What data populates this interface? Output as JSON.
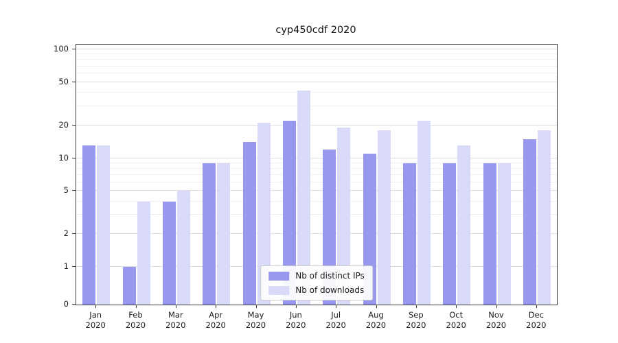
{
  "chart_data": {
    "type": "bar",
    "title": "cyp450cdf 2020",
    "categories": [
      "Jan 2020",
      "Feb 2020",
      "Mar 2020",
      "Apr 2020",
      "May 2020",
      "Jun 2020",
      "Jul 2020",
      "Aug 2020",
      "Sep 2020",
      "Oct 2020",
      "Nov 2020",
      "Dec 2020"
    ],
    "series": [
      {
        "name": "Nb of distinct IPs",
        "color": "#9898ee",
        "values": [
          13,
          1,
          4,
          9,
          14,
          22,
          12,
          11,
          9,
          9,
          9,
          15
        ]
      },
      {
        "name": "Nb of downloads",
        "color": "#d9d9f8",
        "values": [
          13,
          4,
          5,
          9,
          21,
          42,
          19,
          18,
          22,
          13,
          9,
          18
        ]
      }
    ],
    "yscale": "symlog",
    "y_ticks": [
      0,
      1,
      2,
      5,
      10,
      20,
      50,
      100
    ],
    "y_minor_ticks": [
      3,
      4,
      6,
      7,
      8,
      9,
      30,
      40,
      60,
      70,
      80,
      90
    ],
    "ylim": [
      0,
      110
    ],
    "grid": true,
    "legend_position": "lower center"
  }
}
